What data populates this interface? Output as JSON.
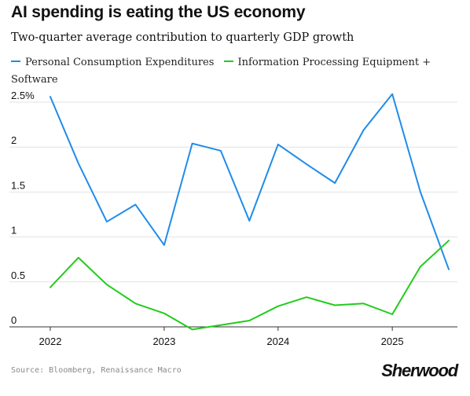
{
  "header": {
    "title": "AI spending is eating the US economy",
    "subtitle": "Two-quarter average contribution to quarterly GDP growth"
  },
  "footer": {
    "source": "Source: Bloomberg, Renaissance Macro",
    "brand": "Sherwood"
  },
  "colors": {
    "pce": "#1f8ceb",
    "ipe": "#22cc1c",
    "grid": "#e3e3e3",
    "axis": "#333333"
  },
  "chart_data": {
    "type": "line",
    "title": "AI spending is eating the US economy",
    "subtitle": "Two-quarter average contribution to quarterly GDP growth",
    "xlabel": "",
    "ylabel": "",
    "x": [
      "2022-01-01",
      "2022-04-01",
      "2022-07-01",
      "2022-10-01",
      "2023-01-01",
      "2023-04-01",
      "2023-07-01",
      "2023-10-01",
      "2024-01-01",
      "2024-04-01",
      "2024-07-01",
      "2024-10-01",
      "2025-01-01",
      "2025-04-01",
      "2025-07-01"
    ],
    "x_ticks": [
      "2022",
      "2023",
      "2024",
      "2025"
    ],
    "x_tick_dates": [
      "2022-01-01",
      "2023-01-01",
      "2024-01-01",
      "2025-01-01"
    ],
    "xlim": [
      "2022-01-01",
      "2025-07-01"
    ],
    "y_ticks": [
      "0",
      "0.5",
      "1",
      "1.5",
      "2",
      "2.5%"
    ],
    "y_tick_values": [
      0,
      0.5,
      1,
      1.5,
      2,
      2.5
    ],
    "ylim": [
      0,
      2.5
    ],
    "grid": "horizontal",
    "legend_position": "top",
    "series": [
      {
        "name": "Personal Consumption Expenditures",
        "color": "#1f8ceb",
        "values": [
          2.56,
          1.82,
          1.17,
          1.36,
          0.91,
          2.04,
          1.96,
          1.18,
          2.03,
          1.81,
          1.6,
          2.19,
          2.59,
          1.5,
          0.64
        ]
      },
      {
        "name": "Information Processing Equipment + Software",
        "color": "#22cc1c",
        "values": [
          0.44,
          0.77,
          0.47,
          0.26,
          0.15,
          -0.03,
          0.02,
          0.07,
          0.23,
          0.33,
          0.24,
          0.26,
          0.14,
          0.67,
          0.96
        ]
      }
    ]
  }
}
